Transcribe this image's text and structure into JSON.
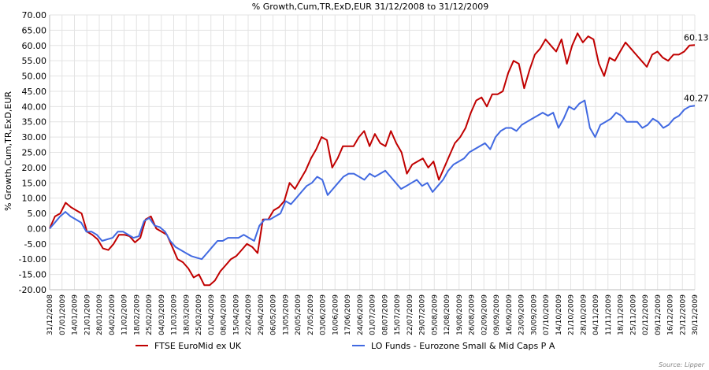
{
  "chart_data": {
    "type": "line",
    "title": "% Growth,Cum,TR,ExD,EUR 31/12/2008 to 31/12/2009",
    "ylabel": "% Growth,Cum,TR,ExD,EUR",
    "xlabel": "",
    "ylim": [
      -20,
      70
    ],
    "yticks": [
      "70.00",
      "65.00",
      "60.00",
      "55.00",
      "50.00",
      "45.00",
      "40.00",
      "35.00",
      "30.00",
      "25.00",
      "20.00",
      "15.00",
      "10.00",
      "5.00",
      "0.00",
      "-5.00",
      "-10.00",
      "-15.00",
      "-20.00"
    ],
    "x_tick_labels": [
      "31/12/2008",
      "07/01/2009",
      "14/01/2009",
      "21/01/2009",
      "28/01/2009",
      "04/02/2009",
      "11/02/2009",
      "18/02/2009",
      "25/02/2009",
      "04/03/2009",
      "11/03/2009",
      "18/03/2009",
      "25/03/2009",
      "01/04/2009",
      "08/04/2009",
      "15/04/2009",
      "22/04/2009",
      "29/04/2009",
      "06/05/2009",
      "13/05/2009",
      "20/05/2009",
      "27/05/2009",
      "03/06/2009",
      "10/06/2009",
      "17/06/2009",
      "24/06/2009",
      "01/07/2009",
      "08/07/2009",
      "15/07/2009",
      "22/07/2009",
      "29/07/2009",
      "05/08/2009",
      "12/08/2009",
      "19/08/2009",
      "26/08/2009",
      "02/09/2009",
      "09/09/2009",
      "16/09/2009",
      "23/09/2009",
      "30/09/2009",
      "07/10/2009",
      "14/10/2009",
      "21/10/2009",
      "28/10/2009",
      "04/11/2009",
      "11/11/2009",
      "18/11/2009",
      "25/11/2009",
      "02/12/2009",
      "09/12/2009",
      "16/12/2009",
      "23/12/2009",
      "30/12/2009"
    ],
    "grid": true,
    "legend_position": "bottom",
    "series": [
      {
        "name": "FTSE EuroMid ex UK",
        "color": "#c00000",
        "end_label": "60.13",
        "values": [
          0,
          4,
          5,
          8.5,
          7,
          6,
          5,
          -1,
          -2,
          -3.5,
          -6.5,
          -7,
          -5,
          -2,
          -2,
          -2.5,
          -4.5,
          -3,
          3,
          4,
          0,
          -1,
          -2,
          -6,
          -10,
          -11,
          -13,
          -16,
          -15,
          -18.5,
          -18.5,
          -17,
          -14,
          -12,
          -10,
          -9,
          -7,
          -5,
          -6,
          -8,
          3,
          3,
          6,
          7,
          9,
          15,
          13,
          16,
          19,
          23,
          26,
          30,
          29,
          20,
          23,
          27,
          27,
          27,
          30,
          32,
          27,
          31,
          28,
          27,
          32,
          28,
          25,
          18,
          21,
          22,
          23,
          20,
          22,
          16,
          20,
          24,
          28,
          30,
          33,
          38,
          42,
          43,
          40,
          44,
          44,
          45,
          51,
          55,
          54,
          46,
          52,
          57,
          59,
          62,
          60,
          58,
          62,
          54,
          60,
          64,
          61,
          63,
          62,
          54,
          50,
          56,
          55,
          58,
          61,
          59,
          57,
          55,
          53,
          57,
          58,
          56,
          55,
          57,
          57,
          58,
          60,
          60.13
        ]
      },
      {
        "name": "LO Funds - Eurozone Small & Mid Caps P A",
        "color": "#4169e1",
        "end_label": "40.27",
        "values": [
          0,
          2,
          4,
          5.5,
          4,
          3,
          2,
          -1,
          -1,
          -2,
          -4,
          -3.5,
          -3,
          -1,
          -1,
          -2,
          -3,
          -2.5,
          2.5,
          3.5,
          1,
          0.5,
          -1,
          -4,
          -6,
          -7,
          -8,
          -9,
          -9.5,
          -10,
          -8,
          -6,
          -4,
          -4,
          -3,
          -3,
          -3,
          -2,
          -3,
          -4,
          1,
          3,
          3,
          4,
          5,
          9,
          8,
          10,
          12,
          14,
          15,
          17,
          16,
          11,
          13,
          15,
          17,
          18,
          18,
          17,
          16,
          18,
          17,
          18,
          19,
          17,
          15,
          13,
          14,
          15,
          16,
          14,
          15,
          12,
          14,
          16,
          19,
          21,
          22,
          23,
          25,
          26,
          27,
          28,
          26,
          30,
          32,
          33,
          33,
          32,
          34,
          35,
          36,
          37,
          38,
          37,
          38,
          33,
          36,
          40,
          39,
          41,
          42,
          33,
          30,
          34,
          35,
          36,
          38,
          37,
          35,
          35,
          35,
          33,
          34,
          36,
          35,
          33,
          34,
          36,
          37,
          39,
          40,
          40.27
        ]
      }
    ]
  },
  "source": "Source: Lipper"
}
